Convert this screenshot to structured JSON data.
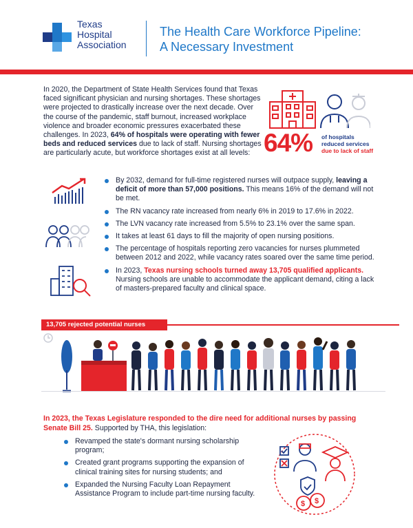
{
  "header": {
    "logo_line1": "Texas",
    "logo_line2": "Hospital",
    "logo_line3": "Association",
    "title_line1": "The Health Care Workforce Pipeline:",
    "title_line2": "A Necessary Investment"
  },
  "intro": {
    "part1": "In 2020, the Department of State Health Services found that Texas faced significant physician and nursing shortages. These shortages were projected to drastically increase over the next decade. Over the course of the pandemic, staff burnout, increased workplace violence and broader economic pressures exacerbated these challenges. In 2023, ",
    "bold": "64% of hospitals were operating with fewer beds and reduced services",
    "part2": " due to lack of staff. Nursing shortages are particularly acute, but workforce shortages exist at all levels:"
  },
  "stat": {
    "value": "64%",
    "caption_line1": "of hospitals",
    "caption_line2": "reduced services",
    "caption_line3": "due to lack of staff"
  },
  "bullets": [
    {
      "pre": "By 2032, demand for full-time registered nurses will outpace supply, ",
      "bold": "leaving a deficit of more than 57,000 positions.",
      "post": " This means 16% of the demand will not be met."
    },
    {
      "text": "The RN vacancy rate increased from nearly 6% in 2019 to 17.6% in 2022."
    },
    {
      "text": "The LVN vacancy rate increased from 5.5%  to 23.1% over the same span."
    },
    {
      "text": "It takes at least 61 days to fill the majority of open nursing positions."
    },
    {
      "text": "The percentage of hospitals reporting zero vacancies for nurses plummeted between 2012 and 2022, while vacancy rates soared over the same time period."
    },
    {
      "pre": "In 2023, ",
      "red": "Texas nursing schools turned away 13,705 qualified applicants.",
      "post": " Nursing schools are unable to accommodate the applicant demand, citing a lack of masters-prepared faculty and clinical space."
    }
  ],
  "banner": {
    "label": "13,705 rejected potential nurses"
  },
  "legislature": {
    "red": "In 2023, the Texas Legislature responded to the dire need for additional nurses by passing Senate Bill 25.",
    "post": " Supported by THA, this legislation:"
  },
  "bullets2": [
    "Revamped the state's dormant nursing scholarship program;",
    "Created grant programs supporting the expansion of clinical training sites for nursing students; and",
    "Expanded the Nursing Faculty Loan Repayment Assistance Program to include part-time nursing faculty."
  ],
  "colors": {
    "accent_red": "#e4252b",
    "accent_blue": "#1f78c8",
    "navy": "#1f3c88"
  }
}
